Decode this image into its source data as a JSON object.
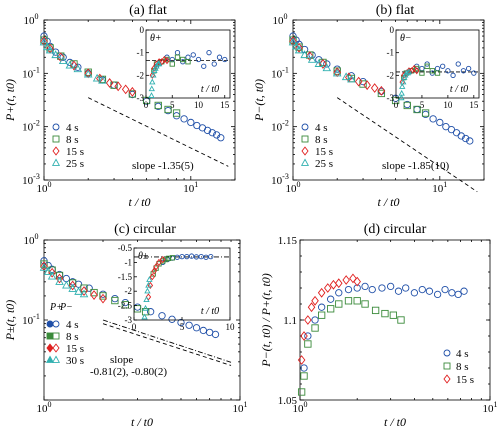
{
  "figure": {
    "colors": {
      "4 s": "#1f4fa8",
      "8 s": "#3a8a3a",
      "15 s": "#e02020",
      "25 s": "#30b0b0",
      "30 s": "#30b0b0"
    }
  },
  "chart_data": [
    {
      "id": "a",
      "type": "scatter",
      "title": "(a) flat",
      "xlabel": "t / t0",
      "ylabel": "P+(t, t0)",
      "xscale": "log",
      "yscale": "log",
      "xlim": [
        1,
        20
      ],
      "ylim": [
        0.001,
        1
      ],
      "x_ticks": [
        "10^0",
        "10^1"
      ],
      "y_ticks": [
        "10^0",
        "10^-1",
        "10^-2",
        "10^-3"
      ],
      "series": [
        {
          "name": "4 s",
          "marker": "circle",
          "x": [
            1,
            1.05,
            1.1,
            1.2,
            1.35,
            1.5,
            1.7,
            2,
            2.5,
            3,
            4,
            5,
            6,
            7,
            8,
            9,
            10,
            11,
            12,
            13,
            14,
            15,
            16
          ],
          "y": [
            0.5,
            0.4,
            0.32,
            0.25,
            0.2,
            0.16,
            0.13,
            0.1,
            0.075,
            0.06,
            0.04,
            0.03,
            0.024,
            0.02,
            0.016,
            0.014,
            0.012,
            0.0105,
            0.0095,
            0.0085,
            0.0077,
            0.007,
            0.0062
          ]
        },
        {
          "name": "8 s",
          "marker": "square",
          "x": [
            1,
            1.1,
            1.3,
            1.6,
            2,
            2.5,
            3,
            4,
            5,
            6,
            7,
            8
          ],
          "y": [
            0.42,
            0.3,
            0.21,
            0.15,
            0.105,
            0.077,
            0.06,
            0.041,
            0.031,
            0.025,
            0.021,
            0.018
          ]
        },
        {
          "name": "15 s",
          "marker": "diamond",
          "x": [
            1,
            1.1,
            1.3,
            1.6,
            2,
            2.4,
            2.8,
            3.2,
            3.6,
            4
          ],
          "y": [
            0.4,
            0.29,
            0.2,
            0.14,
            0.1,
            0.08,
            0.066,
            0.057,
            0.05,
            0.045
          ]
        },
        {
          "name": "25 s",
          "marker": "triangle",
          "x": [
            1,
            1.05,
            1.1,
            1.2,
            1.35,
            1.5,
            1.7,
            2,
            2.3,
            2.5
          ],
          "y": [
            0.38,
            0.31,
            0.27,
            0.22,
            0.17,
            0.14,
            0.12,
            0.095,
            0.08,
            0.073
          ]
        }
      ],
      "reference_line": {
        "label": "slope -1.35(5)",
        "slope": -1.35,
        "x": [
          2,
          18
        ],
        "y_at_x0": 0.035
      },
      "legend": [
        "4 s",
        "8 s",
        "15 s",
        "25 s"
      ],
      "legend_position": "bottom-left",
      "inset": {
        "label": "θ+",
        "xlabel": "t / t0",
        "xlim": [
          0,
          16
        ],
        "ylim": [
          -3,
          0
        ],
        "x_ticks": [
          "0",
          "5",
          "10",
          "15"
        ],
        "y_ticks": [
          "0",
          "-1",
          "-2",
          "-3"
        ],
        "hline": -1.35,
        "series": [
          {
            "name": "4 s",
            "x": [
              2,
              3,
              4,
              5,
              6,
              7,
              8,
              9,
              10,
              11,
              12,
              13,
              14,
              15
            ],
            "y": [
              -1.6,
              -1.4,
              -1.2,
              -1.3,
              -1.0,
              -1.4,
              -1.2,
              -1.1,
              -1.3,
              -1.6,
              -1.0,
              -1.5,
              -1.2,
              -1.3
            ]
          },
          {
            "name": "8 s",
            "x": [
              1.5,
              2,
              3,
              4,
              5,
              6,
              7,
              8
            ],
            "y": [
              -1.8,
              -1.5,
              -1.4,
              -1.3,
              -1.5,
              -1.2,
              -1.3,
              -1.4
            ]
          },
          {
            "name": "15 s",
            "x": [
              1.2,
              1.5,
              2,
              2.5,
              3,
              3.5,
              4
            ],
            "y": [
              -2.0,
              -1.7,
              -1.5,
              -1.4,
              -1.4,
              -1.3,
              -1.35
            ]
          },
          {
            "name": "25 s",
            "x": [
              1.05,
              1.1,
              1.2,
              1.4,
              1.6,
              1.8,
              2,
              2.3,
              2.5
            ],
            "y": [
              -2.9,
              -2.6,
              -2.3,
              -2.0,
              -1.8,
              -1.7,
              -1.6,
              -1.5,
              -1.5
            ]
          }
        ]
      }
    },
    {
      "id": "b",
      "type": "scatter",
      "title": "(b) flat",
      "xlabel": "t / t0",
      "ylabel": "P−(t, t0)",
      "xscale": "log",
      "yscale": "log",
      "xlim": [
        1,
        20
      ],
      "ylim": [
        0.001,
        1
      ],
      "x_ticks": [
        "10^0",
        "10^1"
      ],
      "y_ticks": [
        "10^0",
        "10^-1",
        "10^-2",
        "10^-3"
      ],
      "series": [
        {
          "name": "4 s",
          "marker": "circle",
          "x": [
            1,
            1.05,
            1.1,
            1.2,
            1.35,
            1.5,
            1.7,
            2,
            2.5,
            3,
            4,
            5,
            6,
            7,
            8,
            9,
            10,
            11,
            12,
            13,
            14,
            15,
            16
          ],
          "y": [
            0.5,
            0.42,
            0.35,
            0.28,
            0.22,
            0.18,
            0.15,
            0.12,
            0.09,
            0.07,
            0.046,
            0.034,
            0.026,
            0.021,
            0.017,
            0.014,
            0.012,
            0.01,
            0.0088,
            0.0077,
            0.0067,
            0.006,
            0.0054
          ]
        },
        {
          "name": "8 s",
          "marker": "square",
          "x": [
            1,
            1.1,
            1.3,
            1.6,
            2,
            2.5,
            3,
            4,
            5,
            6,
            7,
            8
          ],
          "y": [
            0.42,
            0.31,
            0.22,
            0.16,
            0.11,
            0.08,
            0.063,
            0.042,
            0.031,
            0.025,
            0.021,
            0.018
          ]
        },
        {
          "name": "15 s",
          "marker": "diamond",
          "x": [
            1,
            1.1,
            1.3,
            1.6,
            2,
            2.4,
            2.8,
            3.2,
            3.6,
            4
          ],
          "y": [
            0.4,
            0.3,
            0.21,
            0.15,
            0.105,
            0.084,
            0.07,
            0.06,
            0.053,
            0.047
          ]
        },
        {
          "name": "25 s",
          "marker": "triangle",
          "x": [
            1,
            1.05,
            1.1,
            1.2,
            1.35,
            1.5,
            1.7,
            2,
            2.3,
            2.5
          ],
          "y": [
            0.38,
            0.32,
            0.27,
            0.22,
            0.18,
            0.15,
            0.125,
            0.1,
            0.085,
            0.077
          ]
        }
      ],
      "reference_line": {
        "label": "slope -1.85(10)",
        "slope": -1.85,
        "x": [
          2,
          18
        ],
        "y_at_x0": 0.035
      },
      "legend": [
        "4 s",
        "8 s",
        "15 s",
        "25 s"
      ],
      "legend_position": "bottom-left",
      "inset": {
        "label": "θ−",
        "xlabel": "t / t0",
        "xlim": [
          0,
          16
        ],
        "ylim": [
          -3,
          0
        ],
        "x_ticks": [
          "0",
          "5",
          "10",
          "15"
        ],
        "y_ticks": [
          "0",
          "-1",
          "-2",
          "-3"
        ],
        "hline": -1.85,
        "series": [
          {
            "name": "4 s",
            "x": [
              2,
              3,
              4,
              5,
              6,
              7,
              8,
              9,
              10,
              11,
              12,
              13,
              14,
              15
            ],
            "y": [
              -1.9,
              -1.8,
              -1.6,
              -1.7,
              -1.5,
              -1.9,
              -1.7,
              -1.6,
              -1.8,
              -2.0,
              -1.5,
              -1.8,
              -1.7,
              -1.9
            ]
          },
          {
            "name": "8 s",
            "x": [
              1.5,
              2,
              3,
              4,
              5,
              6,
              7,
              8
            ],
            "y": [
              -2.1,
              -1.9,
              -1.8,
              -1.7,
              -1.9,
              -1.6,
              -1.8,
              -1.9
            ]
          },
          {
            "name": "15 s",
            "x": [
              1.2,
              1.5,
              2,
              2.5,
              3,
              3.5,
              4
            ],
            "y": [
              -2.3,
              -2.0,
              -1.9,
              -1.8,
              -1.8,
              -1.7,
              -1.8
            ]
          },
          {
            "name": "25 s",
            "x": [
              1.05,
              1.1,
              1.2,
              1.4,
              1.6,
              1.8,
              2,
              2.3,
              2.5
            ],
            "y": [
              -3.0,
              -2.8,
              -2.5,
              -2.3,
              -2.1,
              -2.0,
              -1.9,
              -1.9,
              -1.85
            ]
          }
        ]
      }
    },
    {
      "id": "c",
      "type": "scatter",
      "title": "(c) circular",
      "xlabel": "t / t0",
      "ylabel": "P±(t, t0)",
      "xscale": "log",
      "yscale": "log",
      "xlim": [
        1,
        10
      ],
      "ylim": [
        0.01,
        1
      ],
      "x_ticks": [
        "10^0",
        "10^1"
      ],
      "y_ticks": [
        "10^0",
        "10^-1"
      ],
      "series": [
        {
          "name": "4 s",
          "marker": "circle",
          "x": [
            1,
            1.05,
            1.1,
            1.2,
            1.3,
            1.4,
            1.5,
            1.7,
            2,
            2.3,
            2.6,
            3,
            3.5,
            4,
            4.5,
            5,
            5.5,
            6,
            6.5,
            7,
            7.5
          ],
          "y": [
            0.55,
            0.48,
            0.43,
            0.37,
            0.33,
            0.3,
            0.28,
            0.25,
            0.21,
            0.185,
            0.165,
            0.145,
            0.127,
            0.113,
            0.102,
            0.093,
            0.086,
            0.08,
            0.074,
            0.07,
            0.066
          ]
        },
        {
          "name": "8 s",
          "marker": "square",
          "x": [
            1,
            1.1,
            1.2,
            1.4,
            1.6,
            1.8,
            2,
            2.3,
            2.6,
            3,
            3.3
          ],
          "y": [
            0.5,
            0.42,
            0.36,
            0.29,
            0.25,
            0.22,
            0.2,
            0.175,
            0.155,
            0.138,
            0.127
          ]
        },
        {
          "name": "15 s",
          "marker": "diamond",
          "x": [
            1,
            1.1,
            1.2,
            1.4,
            1.6,
            1.8,
            2
          ],
          "y": [
            0.47,
            0.39,
            0.33,
            0.27,
            0.23,
            0.205,
            0.185
          ]
        },
        {
          "name": "30 s",
          "marker": "triangle",
          "x": [
            1,
            1.05,
            1.1,
            1.2,
            1.3,
            1.4,
            1.5,
            1.6
          ],
          "y": [
            0.45,
            0.4,
            0.35,
            0.3,
            0.27,
            0.245,
            0.225,
            0.21
          ]
        }
      ],
      "reference_lines": [
        {
          "style": "dash-dot",
          "slope": -0.81,
          "x": [
            2,
            9
          ],
          "y_at_x0": 0.1
        },
        {
          "style": "dashed",
          "slope": -0.8,
          "x": [
            2,
            9
          ],
          "y_at_x0": 0.09
        }
      ],
      "slope_label": "slope",
      "slope_values": "-0.81(2), -0.80(2)",
      "legend_header": [
        "P+",
        "P−"
      ],
      "legend": [
        "4 s",
        "8 s",
        "15 s",
        "30 s"
      ],
      "legend_position": "bottom-left",
      "inset": {
        "label": "θ±",
        "xlabel": "t / t0",
        "xlim": [
          0,
          10
        ],
        "ylim": [
          -3,
          -0.5
        ],
        "x_ticks": [
          "0",
          "5",
          "10"
        ],
        "y_ticks": [
          "-0.5",
          "-1",
          "-1.5",
          "-2",
          "-2.5",
          "-3"
        ],
        "hline": -0.81,
        "series": [
          {
            "name": "4 s",
            "x": [
              3,
              3.5,
              4,
              4.5,
              5,
              5.5,
              6,
              6.5,
              7,
              7.5,
              8
            ],
            "y": [
              -1.0,
              -0.9,
              -0.85,
              -0.82,
              -0.8,
              -0.8,
              -0.78,
              -0.81,
              -0.8,
              -0.82,
              -0.8
            ]
          },
          {
            "name": "8 s",
            "x": [
              2,
              2.3,
              2.6,
              3,
              3.3,
              3.6,
              4
            ],
            "y": [
              -1.4,
              -1.2,
              -1.05,
              -0.95,
              -0.9,
              -0.86,
              -0.84
            ]
          },
          {
            "name": "15 s",
            "x": [
              1.5,
              1.7,
              1.9,
              2.1,
              2.3,
              2.6,
              3
            ],
            "y": [
              -2.2,
              -1.8,
              -1.5,
              -1.3,
              -1.15,
              -1.0,
              -0.9
            ]
          },
          {
            "name": "30 s",
            "x": [
              1.1,
              1.2,
              1.3,
              1.4,
              1.5,
              1.6
            ],
            "y": [
              -2.9,
              -2.6,
              -2.3,
              -2.0,
              -1.8,
              -1.6
            ]
          }
        ]
      }
    },
    {
      "id": "d",
      "type": "scatter",
      "title": "(d) circular",
      "xlabel": "t / t0",
      "ylabel": "P−(t, t0) / P+(t, t0)",
      "xscale": "log",
      "yscale": "linear",
      "xlim": [
        1,
        10
      ],
      "ylim": [
        1.05,
        1.15
      ],
      "x_ticks": [
        "10^0",
        "10^1"
      ],
      "y_ticks": [
        "1.15",
        "1.1",
        "1.05"
      ],
      "series": [
        {
          "name": "4 s",
          "marker": "circle",
          "x": [
            1.05,
            1.1,
            1.2,
            1.3,
            1.45,
            1.6,
            1.8,
            2.0,
            2.2,
            2.4,
            2.7,
            3.0,
            3.3,
            3.6,
            4.0,
            4.4,
            4.8,
            5.3,
            5.8,
            6.3,
            6.8,
            7.3
          ],
          "y": [
            1.07,
            1.09,
            1.1,
            1.108,
            1.113,
            1.117,
            1.119,
            1.12,
            1.121,
            1.119,
            1.12,
            1.121,
            1.118,
            1.12,
            1.117,
            1.119,
            1.118,
            1.116,
            1.119,
            1.117,
            1.116,
            1.118
          ]
        },
        {
          "name": "8 s",
          "marker": "square",
          "x": [
            1.02,
            1.05,
            1.1,
            1.2,
            1.3,
            1.45,
            1.6,
            1.8,
            2.0,
            2.2,
            2.5,
            2.8,
            3.1,
            3.4
          ],
          "y": [
            1.055,
            1.065,
            1.085,
            1.095,
            1.103,
            1.107,
            1.11,
            1.112,
            1.112,
            1.11,
            1.106,
            1.104,
            1.103,
            1.1
          ]
        },
        {
          "name": "15 s",
          "marker": "diamond",
          "x": [
            1.02,
            1.05,
            1.1,
            1.15,
            1.2,
            1.3,
            1.4,
            1.5,
            1.6,
            1.75,
            1.9,
            2.0
          ],
          "y": [
            1.075,
            1.09,
            1.1,
            1.108,
            1.112,
            1.117,
            1.12,
            1.122,
            1.123,
            1.125,
            1.126,
            1.124
          ]
        }
      ],
      "legend": [
        "4 s",
        "8 s",
        "15 s"
      ],
      "legend_position": "bottom-right"
    }
  ]
}
